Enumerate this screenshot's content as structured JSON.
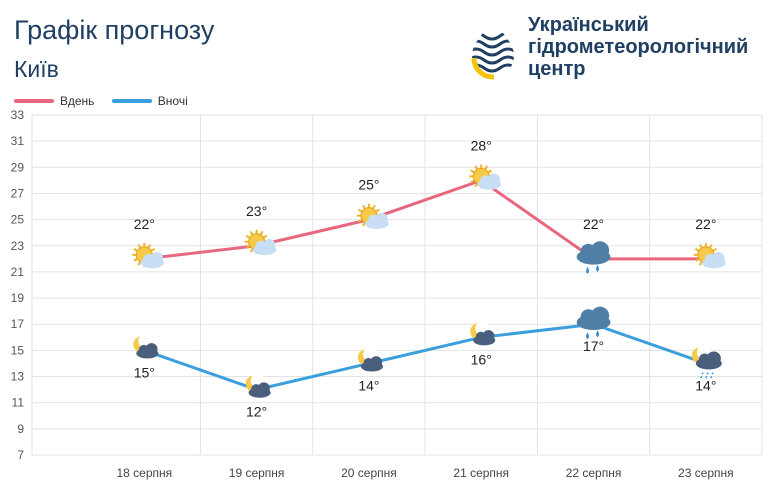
{
  "header": {
    "title": "Графік прогнозу",
    "city": "Київ",
    "org_lines": [
      "Український",
      "гідрометеорологічний",
      "центр"
    ]
  },
  "colors": {
    "day": "#e8677f",
    "night": "#3a9fdc",
    "grid": "#e3e3e3",
    "text": "#1f3f63"
  },
  "chart_data": {
    "type": "line",
    "categories": [
      "18 серпня",
      "19 серпня",
      "20 серпня",
      "21 серпня",
      "22 серпня",
      "23 серпня"
    ],
    "series": [
      {
        "name": "Вдень",
        "values": [
          22,
          23,
          25,
          28,
          22,
          22
        ],
        "labels": [
          "22°",
          "23°",
          "25°",
          "28°",
          "22°",
          "22°"
        ],
        "icons": [
          "sun-cloud-icon",
          "sun-cloud-icon",
          "sun-cloud-icon",
          "sun-cloud-icon",
          "rain-cloud-icon",
          "sun-cloud-icon"
        ]
      },
      {
        "name": "Вночі",
        "values": [
          15,
          12,
          14,
          16,
          17,
          14
        ],
        "labels": [
          "15°",
          "12°",
          "14°",
          "16°",
          "17°",
          "14°"
        ],
        "icons": [
          "moon-cloud-icon",
          "moon-cloud-icon",
          "moon-cloud-icon",
          "moon-cloud-icon",
          "rain-cloud-icon",
          "moon-rain-icon"
        ]
      }
    ],
    "yticks": [
      7,
      9,
      11,
      13,
      15,
      17,
      19,
      21,
      23,
      25,
      27,
      29,
      31,
      33
    ],
    "ylim": [
      7,
      33
    ],
    "grid": true,
    "legend_position": "top-left"
  }
}
